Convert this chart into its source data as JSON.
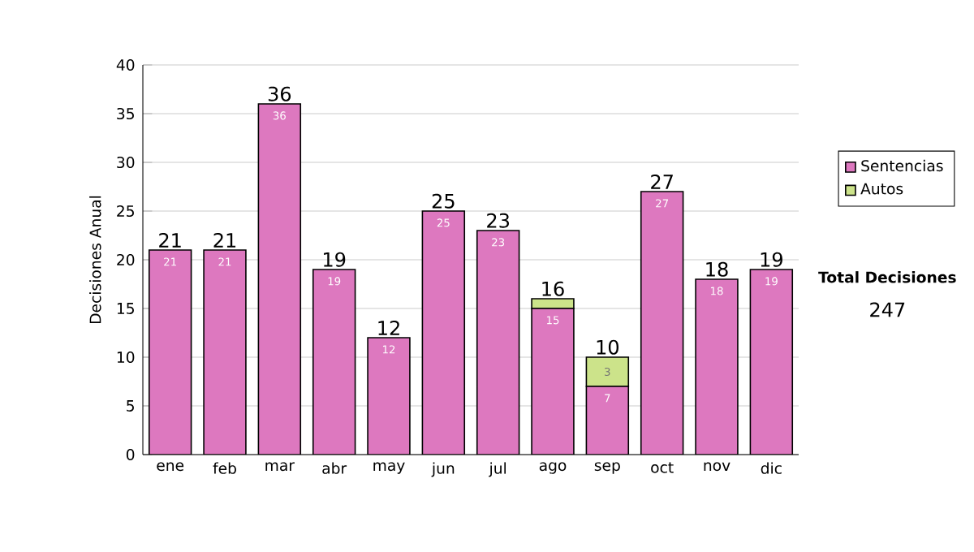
{
  "chart_data": {
    "type": "bar",
    "stacked": true,
    "ylabel": "Decisiones Anual",
    "categories": [
      "ene",
      "feb",
      "mar",
      "abr",
      "may",
      "jun",
      "jul",
      "ago",
      "sep",
      "oct",
      "nov",
      "dic"
    ],
    "series": [
      {
        "name": "Sentencias",
        "color": "#dd78bf",
        "values": [
          21,
          21,
          36,
          19,
          12,
          25,
          23,
          15,
          7,
          27,
          18,
          19
        ],
        "value_labels": [
          "21",
          "21",
          "36",
          "19",
          "12",
          "25",
          "23",
          "15",
          "7",
          "27",
          "18",
          "19"
        ]
      },
      {
        "name": "Autos",
        "color": "#cce38a",
        "values": [
          0,
          0,
          0,
          0,
          0,
          0,
          0,
          1,
          3,
          0,
          0,
          0
        ],
        "value_labels": [
          null,
          null,
          null,
          null,
          null,
          null,
          null,
          null,
          "3",
          null,
          null,
          null
        ]
      }
    ],
    "totals": [
      "21",
      "21",
      "36",
      "19",
      "12",
      "25",
      "23",
      "16",
      "10",
      "27",
      "18",
      "19"
    ],
    "ylim": [
      0,
      40
    ],
    "yticks": [
      0,
      5,
      10,
      15,
      20,
      25,
      30,
      35,
      40
    ],
    "grid": "y",
    "legend": "right",
    "annotations": [
      "Total Decisiones",
      "247"
    ]
  }
}
